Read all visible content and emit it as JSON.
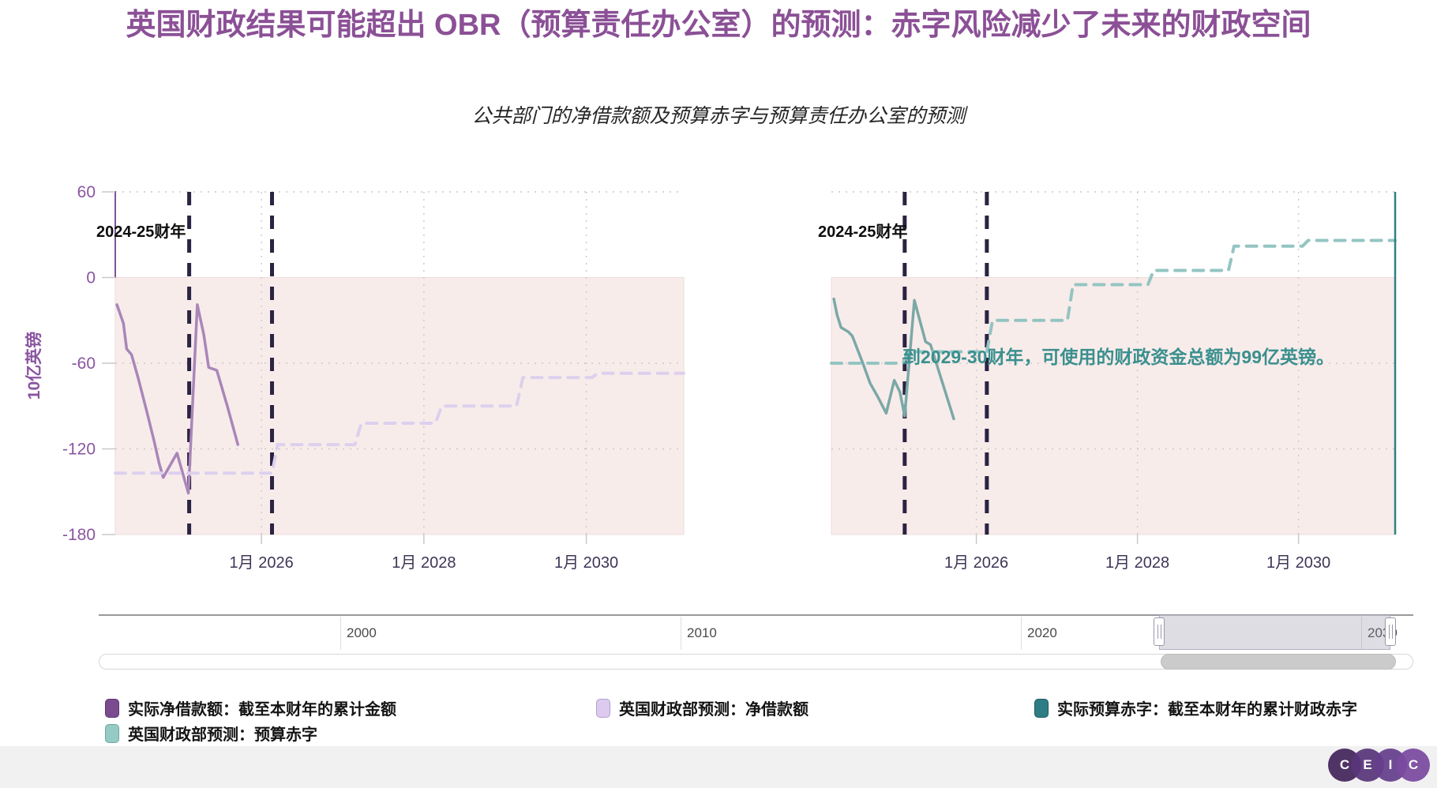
{
  "header": {
    "title": "英国财政结果可能超出 OBR（预算责任办公室）的预测：赤字风险减少了未来的财政空间",
    "subtitle": "公共部门的净借款额及预算赤字与预算责任办公室的预测"
  },
  "y_axis": {
    "title": "10亿英镑",
    "tick_values": [
      60,
      0,
      -60,
      -120,
      -180
    ],
    "range": [
      -180,
      60
    ]
  },
  "x_axis": {
    "ticks": [
      {
        "label": "1月 2026",
        "year": 2026
      },
      {
        "label": "1月 2028",
        "year": 2028
      },
      {
        "label": "1月 2030",
        "year": 2030
      }
    ],
    "range_years": [
      2024.2,
      2031.2
    ]
  },
  "annotations": {
    "left_fiscal_year_label": "2024-25财年",
    "right_fiscal_year_label": "2024-25财年",
    "headroom_note": "到2029-30财年，可使用的财政资金总额为99亿英镑。"
  },
  "chart_data": [
    {
      "id": "net-borrowing-panel",
      "type": "line",
      "grid": true,
      "plot_band_below_zero_color": "#f8eceb",
      "fiscal_year_lines": [
        2025.11,
        2026.13
      ],
      "series": [
        {
          "name": "实际净借款额：截至本财年的累计金额",
          "style": "solid",
          "color": "#a986b8",
          "points": [
            [
              2024.22,
              -19
            ],
            [
              2024.3,
              -32
            ],
            [
              2024.34,
              -50
            ],
            [
              2024.4,
              -54
            ],
            [
              2024.48,
              -70
            ],
            [
              2024.58,
              -92
            ],
            [
              2024.68,
              -115
            ],
            [
              2024.74,
              -130
            ],
            [
              2024.79,
              -140
            ],
            [
              2024.96,
              -123
            ],
            [
              2025.1,
              -151
            ],
            [
              2025.21,
              -19
            ],
            [
              2025.29,
              -40
            ],
            [
              2025.35,
              -63
            ],
            [
              2025.45,
              -65
            ],
            [
              2025.58,
              -90
            ],
            [
              2025.71,
              -117
            ]
          ]
        },
        {
          "name": "英国财政部预测：净借款额",
          "style": "dashed",
          "color": "#dcd0ee",
          "points": [
            [
              2024.2,
              -137
            ],
            [
              2026.13,
              -137
            ],
            [
              2026.2,
              -117
            ],
            [
              2027.15,
              -117
            ],
            [
              2027.23,
              -102
            ],
            [
              2028.14,
              -102
            ],
            [
              2028.22,
              -90
            ],
            [
              2029.14,
              -90
            ],
            [
              2029.22,
              -70
            ],
            [
              2030.07,
              -70
            ],
            [
              2030.14,
              -67
            ],
            [
              2031.2,
              -67
            ]
          ]
        }
      ]
    },
    {
      "id": "budget-deficit-panel",
      "type": "line",
      "grid": true,
      "plot_band_below_zero_color": "#f8eceb",
      "fiscal_year_lines": [
        2025.11,
        2026.13
      ],
      "right_edge_line_color": "#2f8086",
      "series": [
        {
          "name": "实际预算赤字：截至本财年的累计财政赤字",
          "style": "solid",
          "color": "#7aa9a7",
          "points": [
            [
              2024.23,
              -15
            ],
            [
              2024.27,
              -26
            ],
            [
              2024.32,
              -35
            ],
            [
              2024.41,
              -38
            ],
            [
              2024.46,
              -41
            ],
            [
              2024.59,
              -60
            ],
            [
              2024.68,
              -74
            ],
            [
              2024.78,
              -84
            ],
            [
              2024.88,
              -95
            ],
            [
              2024.98,
              -72
            ],
            [
              2025.05,
              -80
            ],
            [
              2025.11,
              -97
            ],
            [
              2025.23,
              -16
            ],
            [
              2025.37,
              -45
            ],
            [
              2025.43,
              -47
            ],
            [
              2025.72,
              -99
            ]
          ]
        },
        {
          "name": "英国财政部预测：预算赤字",
          "style": "dashed",
          "color": "#93c5c2",
          "points": [
            [
              2024.2,
              -60
            ],
            [
              2025.09,
              -60
            ],
            [
              2025.15,
              -52
            ],
            [
              2026.13,
              -52
            ],
            [
              2026.2,
              -30
            ],
            [
              2027.13,
              -30
            ],
            [
              2027.2,
              -5
            ],
            [
              2028.13,
              -5
            ],
            [
              2028.2,
              5
            ],
            [
              2029.13,
              5
            ],
            [
              2029.2,
              22
            ],
            [
              2030.05,
              22
            ],
            [
              2030.12,
              26
            ],
            [
              2031.2,
              26
            ]
          ]
        }
      ]
    }
  ],
  "navigator": {
    "axis_labels": [
      {
        "label": "2000",
        "year": 2000
      },
      {
        "label": "2010",
        "year": 2010
      },
      {
        "label": "2020",
        "year": 2020
      },
      {
        "label": "2030",
        "year": 2030
      }
    ],
    "selection": {
      "from_year": 2024.05,
      "to_year": 2030.85
    }
  },
  "legend": {
    "items": [
      {
        "label": "实际净借款额：截至本财年的累计金额",
        "color": "#7b4b8f",
        "border": "#5e3572"
      },
      {
        "label": "英国财政部预测：净借款额",
        "color": "#dccbee",
        "border": "#b49ed0"
      },
      {
        "label": "实际预算赤字：截至本财年的累计财政赤字",
        "color": "#2e7d84",
        "border": "#1f5a60"
      },
      {
        "label": "英国财政部预测：预算赤字",
        "color": "#95cac5",
        "border": "#6fa8a2"
      }
    ]
  },
  "footer": {
    "brand_letters": [
      "C",
      "E",
      "I",
      "C"
    ]
  },
  "colors": {
    "title": "#8b5096",
    "axis_label": "#8a55a0",
    "x_tick_label": "#3f3556",
    "fiscal_line": "#2b2342",
    "gridline": "#c9c9c9",
    "annotation_teal": "#3a908e"
  }
}
